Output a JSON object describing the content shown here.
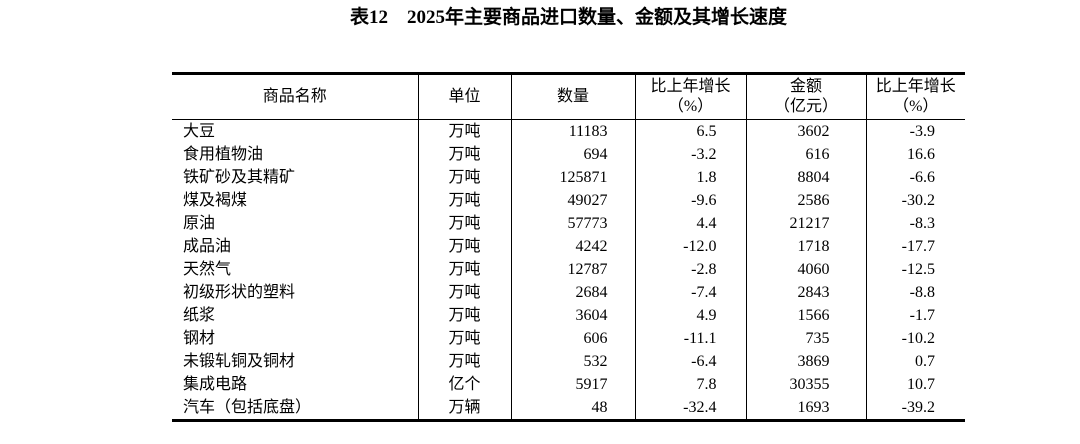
{
  "title": "表12　2025年主要商品进口数量、金额及其增长速度",
  "table": {
    "headers": {
      "name": "商品名称",
      "unit": "单位",
      "quantity": "数量",
      "qty_growth_line1": "比上年增长",
      "qty_growth_line2": "（%）",
      "amount_line1": "金额",
      "amount_line2": "（亿元）",
      "amt_growth_line1": "比上年增长",
      "amt_growth_line2": "（%）"
    },
    "rows": [
      {
        "name": "大豆",
        "unit": "万吨",
        "quantity": "11183",
        "qty_growth": "6.5",
        "amount": "3602",
        "amt_growth": "-3.9"
      },
      {
        "name": "食用植物油",
        "unit": "万吨",
        "quantity": "694",
        "qty_growth": "-3.2",
        "amount": "616",
        "amt_growth": "16.6"
      },
      {
        "name": "铁矿砂及其精矿",
        "unit": "万吨",
        "quantity": "125871",
        "qty_growth": "1.8",
        "amount": "8804",
        "amt_growth": "-6.6"
      },
      {
        "name": "煤及褐煤",
        "unit": "万吨",
        "quantity": "49027",
        "qty_growth": "-9.6",
        "amount": "2586",
        "amt_growth": "-30.2"
      },
      {
        "name": "原油",
        "unit": "万吨",
        "quantity": "57773",
        "qty_growth": "4.4",
        "amount": "21217",
        "amt_growth": "-8.3"
      },
      {
        "name": "成品油",
        "unit": "万吨",
        "quantity": "4242",
        "qty_growth": "-12.0",
        "amount": "1718",
        "amt_growth": "-17.7"
      },
      {
        "name": "天然气",
        "unit": "万吨",
        "quantity": "12787",
        "qty_growth": "-2.8",
        "amount": "4060",
        "amt_growth": "-12.5"
      },
      {
        "name": "初级形状的塑料",
        "unit": "万吨",
        "quantity": "2684",
        "qty_growth": "-7.4",
        "amount": "2843",
        "amt_growth": "-8.8"
      },
      {
        "name": "纸浆",
        "unit": "万吨",
        "quantity": "3604",
        "qty_growth": "4.9",
        "amount": "1566",
        "amt_growth": "-1.7"
      },
      {
        "name": "钢材",
        "unit": "万吨",
        "quantity": "606",
        "qty_growth": "-11.1",
        "amount": "735",
        "amt_growth": "-10.2"
      },
      {
        "name": "未锻轧铜及铜材",
        "unit": "万吨",
        "quantity": "532",
        "qty_growth": "-6.4",
        "amount": "3869",
        "amt_growth": "0.7"
      },
      {
        "name": "集成电路",
        "unit": "亿个",
        "quantity": "5917",
        "qty_growth": "7.8",
        "amount": "30355",
        "amt_growth": "10.7"
      },
      {
        "name": "汽车（包括底盘）",
        "unit": "万辆",
        "quantity": "48",
        "qty_growth": "-32.4",
        "amount": "1693",
        "amt_growth": "-39.2"
      }
    ]
  }
}
